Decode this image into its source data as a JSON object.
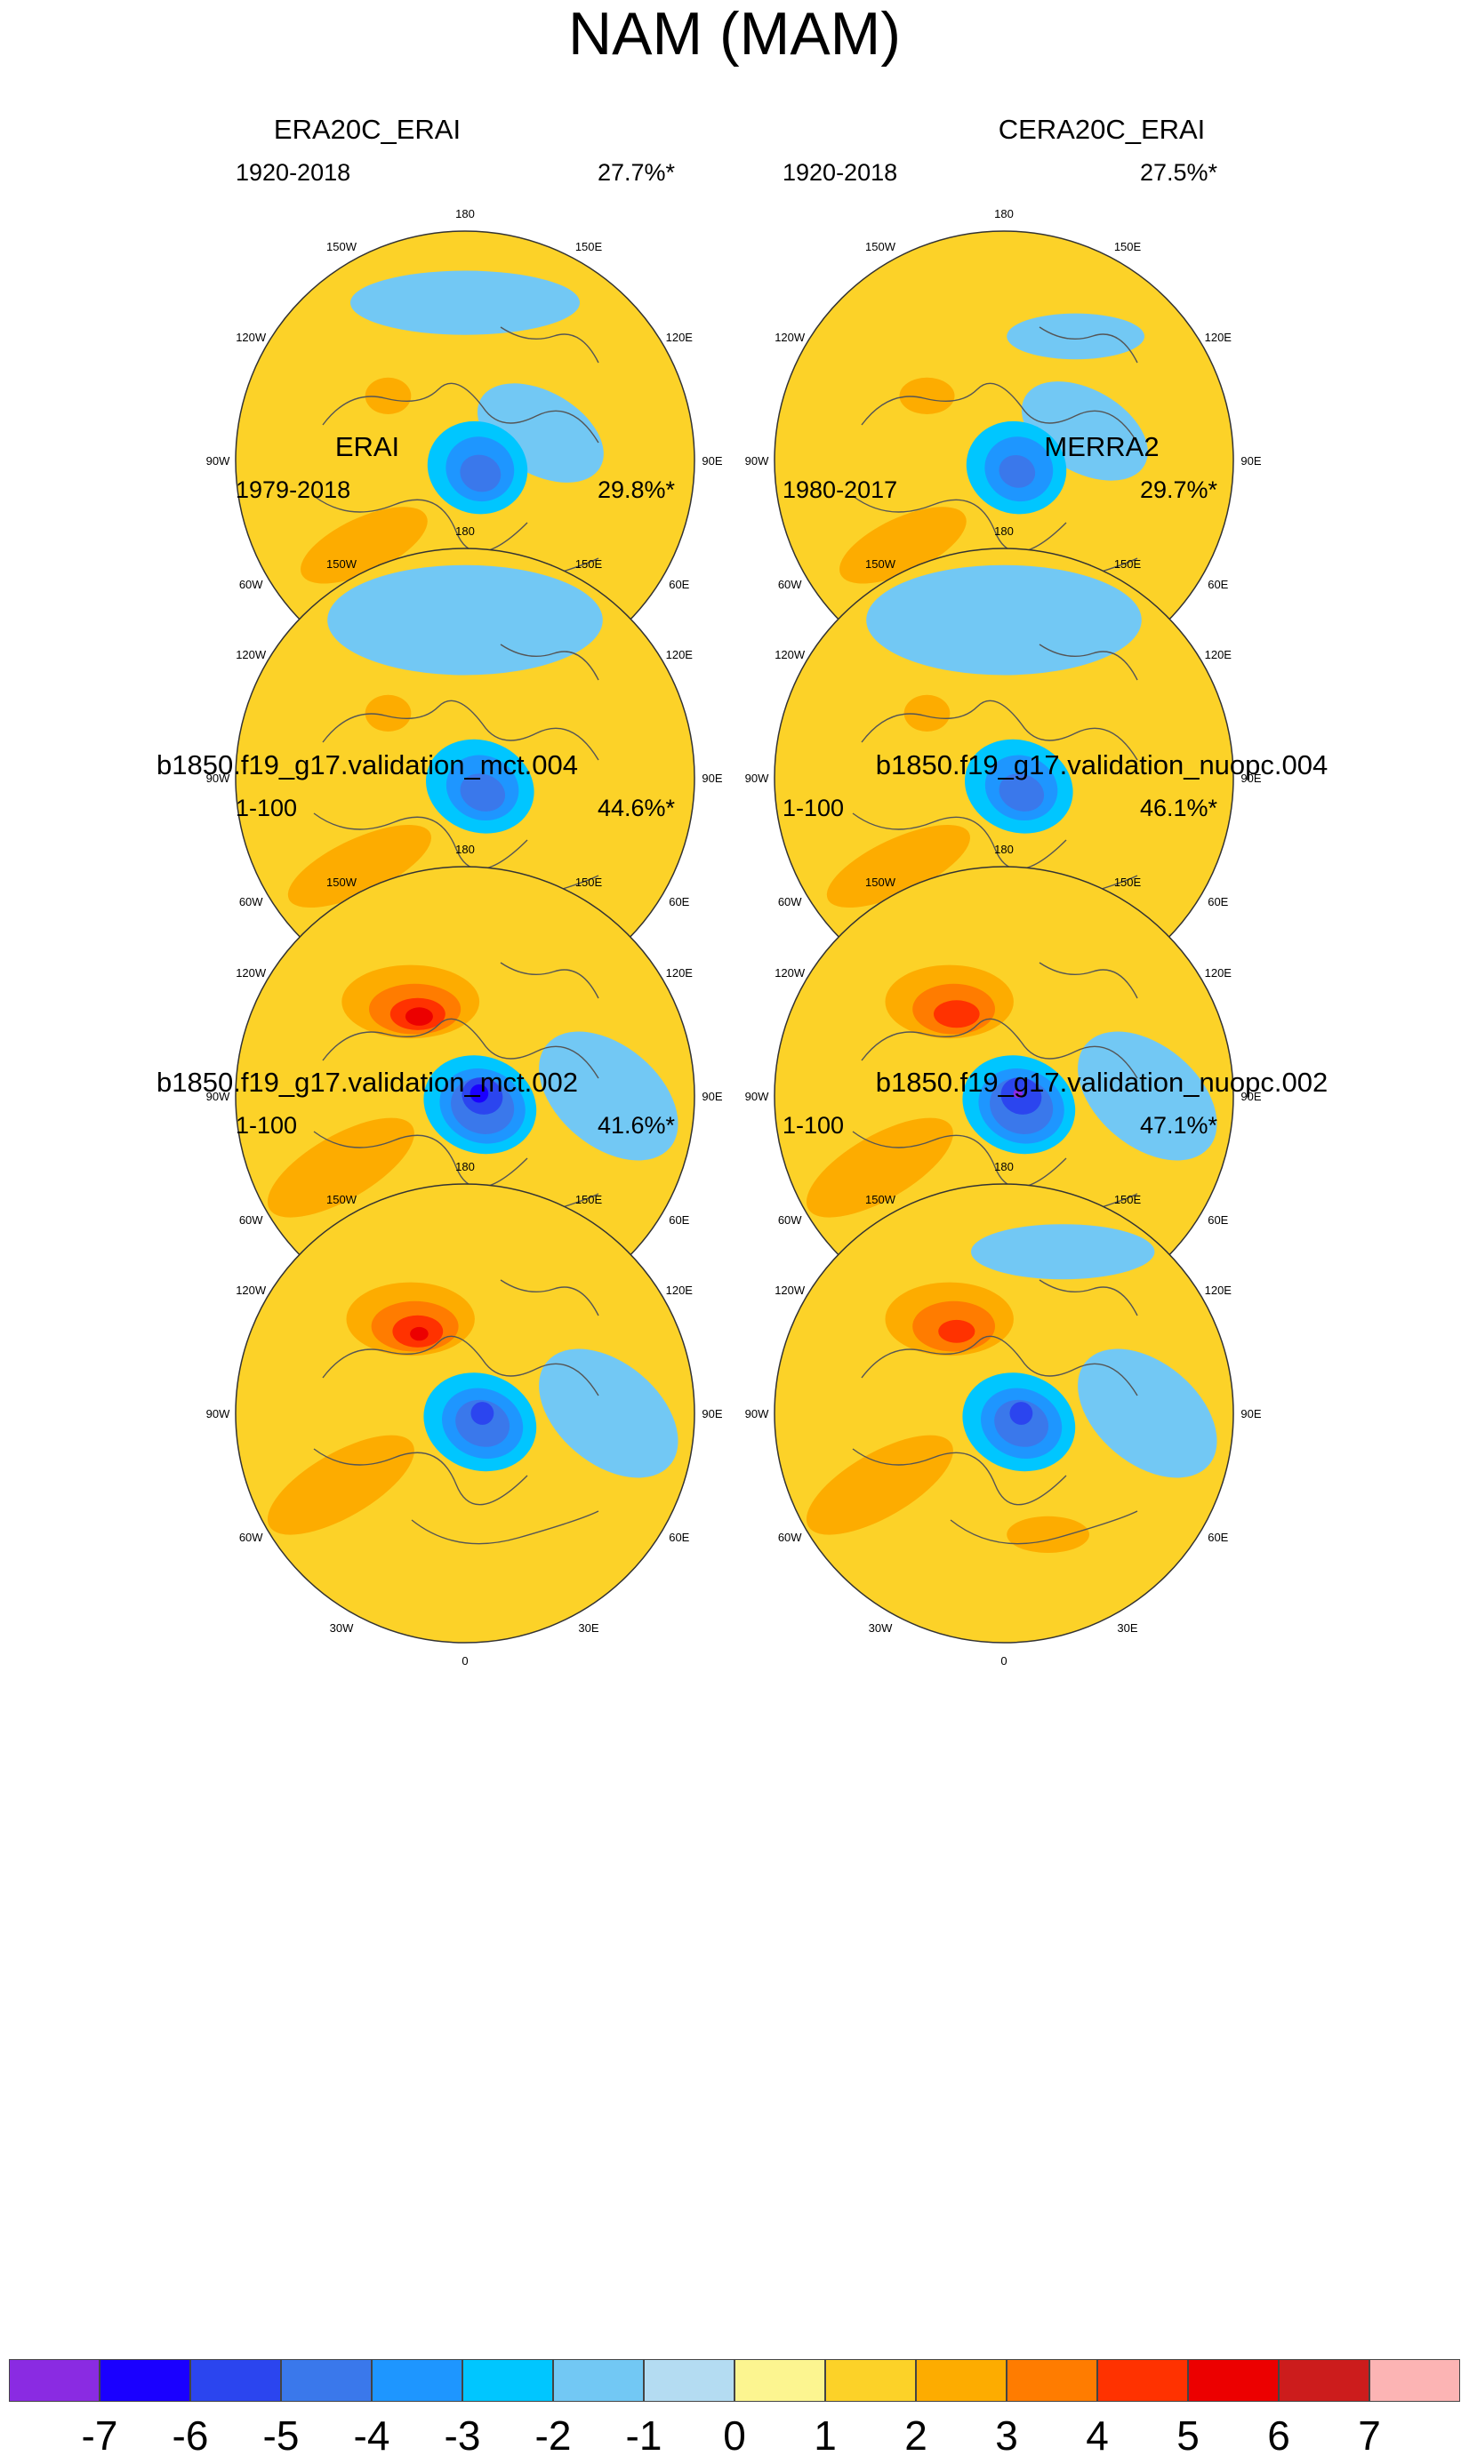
{
  "title": "NAM (MAM)",
  "lon_labels": [
    "180",
    "150E",
    "120E",
    "90E",
    "60E",
    "30E",
    "0",
    "30W",
    "60W",
    "90W",
    "120W",
    "150W"
  ],
  "panels": [
    {
      "title": "ERA20C_ERAI",
      "period": "1920-2018",
      "variance": "27.7%*",
      "features": [
        {
          "v": 2,
          "lon": -50,
          "lat": 44,
          "rx": 0.3,
          "ry": 0.12,
          "rot": -25
        },
        {
          "v": 2,
          "lon": -130,
          "lat": 55,
          "rx": 0.1,
          "ry": 0.08,
          "rot": 0
        },
        {
          "v": -1,
          "lon": 110,
          "lat": 62,
          "rx": 0.3,
          "ry": 0.18,
          "rot": 30
        },
        {
          "v": -1,
          "lon": 180,
          "lat": 35,
          "rx": 0.5,
          "ry": 0.14,
          "rot": 0
        },
        {
          "v": -2,
          "lon": 60,
          "lat": 85,
          "rx": 0.22,
          "ry": 0.2,
          "rot": 20
        },
        {
          "v": -3,
          "lon": 60,
          "lat": 84,
          "rx": 0.15,
          "ry": 0.14,
          "rot": 20
        },
        {
          "v": -4,
          "lon": 50,
          "lat": 83,
          "rx": 0.09,
          "ry": 0.08,
          "rot": 20
        }
      ]
    },
    {
      "title": "CERA20C_ERAI",
      "period": "1920-2018",
      "variance": "27.5%*",
      "features": [
        {
          "v": 2,
          "lon": -50,
          "lat": 44,
          "rx": 0.3,
          "ry": 0.12,
          "rot": -25
        },
        {
          "v": 2,
          "lon": -130,
          "lat": 55,
          "rx": 0.12,
          "ry": 0.08,
          "rot": 0
        },
        {
          "v": -1,
          "lon": 110,
          "lat": 60,
          "rx": 0.3,
          "ry": 0.18,
          "rot": 30
        },
        {
          "v": -1,
          "lon": 150,
          "lat": 40,
          "rx": 0.3,
          "ry": 0.1,
          "rot": 0
        },
        {
          "v": -2,
          "lon": 60,
          "lat": 85,
          "rx": 0.22,
          "ry": 0.2,
          "rot": 20
        },
        {
          "v": -3,
          "lon": 60,
          "lat": 84,
          "rx": 0.15,
          "ry": 0.14,
          "rot": 20
        },
        {
          "v": -4,
          "lon": 50,
          "lat": 84,
          "rx": 0.08,
          "ry": 0.07,
          "rot": 20
        }
      ]
    },
    {
      "title": "ERAI",
      "period": "1979-2018",
      "variance": "29.8%*",
      "features": [
        {
          "v": 2,
          "lon": -50,
          "lat": 42,
          "rx": 0.34,
          "ry": 0.12,
          "rot": -25
        },
        {
          "v": 2,
          "lon": -130,
          "lat": 55,
          "rx": 0.1,
          "ry": 0.08,
          "rot": 0
        },
        {
          "v": -1,
          "lon": 180,
          "lat": 35,
          "rx": 0.6,
          "ry": 0.24,
          "rot": 0
        },
        {
          "v": -2,
          "lon": 60,
          "lat": 84,
          "rx": 0.24,
          "ry": 0.2,
          "rot": 20
        },
        {
          "v": -3,
          "lon": 60,
          "lat": 83,
          "rx": 0.16,
          "ry": 0.14,
          "rot": 20
        },
        {
          "v": -4,
          "lon": 50,
          "lat": 82,
          "rx": 0.1,
          "ry": 0.08,
          "rot": 20
        }
      ]
    },
    {
      "title": "MERRA2",
      "period": "1980-2017",
      "variance": "29.7%*",
      "features": [
        {
          "v": 2,
          "lon": -50,
          "lat": 42,
          "rx": 0.34,
          "ry": 0.12,
          "rot": -25
        },
        {
          "v": 2,
          "lon": -130,
          "lat": 55,
          "rx": 0.1,
          "ry": 0.08,
          "rot": 0
        },
        {
          "v": -1,
          "lon": 180,
          "lat": 35,
          "rx": 0.6,
          "ry": 0.24,
          "rot": 0
        },
        {
          "v": -2,
          "lon": 60,
          "lat": 84,
          "rx": 0.24,
          "ry": 0.2,
          "rot": 20
        },
        {
          "v": -3,
          "lon": 60,
          "lat": 83,
          "rx": 0.16,
          "ry": 0.14,
          "rot": 20
        },
        {
          "v": -4,
          "lon": 50,
          "lat": 82,
          "rx": 0.1,
          "ry": 0.08,
          "rot": 20
        }
      ]
    },
    {
      "title": "b1850.f19_g17.validation_mct.004",
      "period": "1-100",
      "variance": "44.6%*",
      "features": [
        {
          "v": 2,
          "lon": -60,
          "lat": 40,
          "rx": 0.36,
          "ry": 0.14,
          "rot": -30
        },
        {
          "v": 2,
          "lon": 20,
          "lat": 45,
          "rx": 0.16,
          "ry": 0.08,
          "rot": 0
        },
        {
          "v": 2,
          "lon": -150,
          "lat": 52,
          "rx": 0.3,
          "ry": 0.16,
          "rot": 0
        },
        {
          "v": 3,
          "lon": -150,
          "lat": 55,
          "rx": 0.2,
          "ry": 0.11,
          "rot": 0
        },
        {
          "v": 4,
          "lon": -150,
          "lat": 57,
          "rx": 0.12,
          "ry": 0.07,
          "rot": 0
        },
        {
          "v": 5,
          "lon": -150,
          "lat": 58,
          "rx": 0.06,
          "ry": 0.04,
          "rot": 0
        },
        {
          "v": -1,
          "lon": 90,
          "lat": 40,
          "rx": 0.35,
          "ry": 0.22,
          "rot": 40
        },
        {
          "v": -2,
          "lon": 60,
          "lat": 84,
          "rx": 0.25,
          "ry": 0.21,
          "rot": 20
        },
        {
          "v": -3,
          "lon": 60,
          "lat": 83,
          "rx": 0.19,
          "ry": 0.16,
          "rot": 20
        },
        {
          "v": -4,
          "lon": 60,
          "lat": 83,
          "rx": 0.14,
          "ry": 0.12,
          "rot": 20
        },
        {
          "v": -5,
          "lon": 90,
          "lat": 84,
          "rx": 0.09,
          "ry": 0.08,
          "rot": 20
        },
        {
          "v": -6,
          "lon": 100,
          "lat": 85,
          "rx": 0.04,
          "ry": 0.04,
          "rot": 0
        }
      ]
    },
    {
      "title": "b1850.f19_g17.validation_nuopc.004",
      "period": "1-100",
      "variance": "46.1%*",
      "features": [
        {
          "v": 2,
          "lon": -60,
          "lat": 40,
          "rx": 0.36,
          "ry": 0.14,
          "rot": -30
        },
        {
          "v": 2,
          "lon": 20,
          "lat": 45,
          "rx": 0.16,
          "ry": 0.08,
          "rot": 0
        },
        {
          "v": 2,
          "lon": -150,
          "lat": 52,
          "rx": 0.28,
          "ry": 0.16,
          "rot": 0
        },
        {
          "v": 3,
          "lon": -150,
          "lat": 55,
          "rx": 0.18,
          "ry": 0.11,
          "rot": 0
        },
        {
          "v": 4,
          "lon": -150,
          "lat": 57,
          "rx": 0.1,
          "ry": 0.06,
          "rot": 0
        },
        {
          "v": -1,
          "lon": 90,
          "lat": 40,
          "rx": 0.35,
          "ry": 0.22,
          "rot": 40
        },
        {
          "v": -2,
          "lon": 60,
          "lat": 84,
          "rx": 0.25,
          "ry": 0.21,
          "rot": 20
        },
        {
          "v": -3,
          "lon": 60,
          "lat": 83,
          "rx": 0.19,
          "ry": 0.16,
          "rot": 20
        },
        {
          "v": -4,
          "lon": 60,
          "lat": 83,
          "rx": 0.14,
          "ry": 0.12,
          "rot": 20
        },
        {
          "v": -5,
          "lon": 90,
          "lat": 84,
          "rx": 0.09,
          "ry": 0.08,
          "rot": 20
        },
        {
          "v": -7,
          "lon": 100,
          "lat": 85,
          "rx": 0.02,
          "ry": 0.02,
          "rot": 0
        }
      ]
    },
    {
      "title": "b1850.f19_g17.validation_mct.002",
      "period": "1-100",
      "variance": "41.6%*",
      "features": [
        {
          "v": 2,
          "lon": -60,
          "lat": 40,
          "rx": 0.36,
          "ry": 0.14,
          "rot": -30
        },
        {
          "v": 2,
          "lon": -150,
          "lat": 52,
          "rx": 0.28,
          "ry": 0.16,
          "rot": 0
        },
        {
          "v": 3,
          "lon": -150,
          "lat": 55,
          "rx": 0.19,
          "ry": 0.11,
          "rot": 0
        },
        {
          "v": 4,
          "lon": -150,
          "lat": 57,
          "rx": 0.11,
          "ry": 0.07,
          "rot": 0
        },
        {
          "v": 5,
          "lon": -150,
          "lat": 58,
          "rx": 0.04,
          "ry": 0.03,
          "rot": 0
        },
        {
          "v": -1,
          "lon": 90,
          "lat": 40,
          "rx": 0.35,
          "ry": 0.22,
          "rot": 40
        },
        {
          "v": -2,
          "lon": 60,
          "lat": 84,
          "rx": 0.25,
          "ry": 0.21,
          "rot": 20
        },
        {
          "v": -3,
          "lon": 60,
          "lat": 83,
          "rx": 0.18,
          "ry": 0.15,
          "rot": 20
        },
        {
          "v": -4,
          "lon": 60,
          "lat": 83,
          "rx": 0.12,
          "ry": 0.1,
          "rot": 20
        },
        {
          "v": -5,
          "lon": 90,
          "lat": 84,
          "rx": 0.05,
          "ry": 0.05,
          "rot": 20
        }
      ]
    },
    {
      "title": "b1850.f19_g17.validation_nuopc.002",
      "period": "1-100",
      "variance": "47.1%*",
      "features": [
        {
          "v": 2,
          "lon": -60,
          "lat": 40,
          "rx": 0.36,
          "ry": 0.14,
          "rot": -30
        },
        {
          "v": 2,
          "lon": 20,
          "lat": 45,
          "rx": 0.18,
          "ry": 0.08,
          "rot": 0
        },
        {
          "v": 2,
          "lon": -150,
          "lat": 52,
          "rx": 0.28,
          "ry": 0.16,
          "rot": 0
        },
        {
          "v": 3,
          "lon": -150,
          "lat": 55,
          "rx": 0.18,
          "ry": 0.11,
          "rot": 0
        },
        {
          "v": 4,
          "lon": -150,
          "lat": 57,
          "rx": 0.08,
          "ry": 0.05,
          "rot": 0
        },
        {
          "v": -1,
          "lon": 90,
          "lat": 40,
          "rx": 0.35,
          "ry": 0.22,
          "rot": 40
        },
        {
          "v": -1,
          "lon": 160,
          "lat": 30,
          "rx": 0.4,
          "ry": 0.12,
          "rot": 0
        },
        {
          "v": -2,
          "lon": 60,
          "lat": 84,
          "rx": 0.25,
          "ry": 0.21,
          "rot": 20
        },
        {
          "v": -3,
          "lon": 60,
          "lat": 83,
          "rx": 0.18,
          "ry": 0.15,
          "rot": 20
        },
        {
          "v": -4,
          "lon": 60,
          "lat": 83,
          "rx": 0.12,
          "ry": 0.1,
          "rot": 20
        },
        {
          "v": -5,
          "lon": 90,
          "lat": 84,
          "rx": 0.05,
          "ry": 0.05,
          "rot": 20
        }
      ]
    }
  ],
  "colorbar": {
    "labels": [
      "-7",
      "-6",
      "-5",
      "-4",
      "-3",
      "-2",
      "-1",
      "0",
      "1",
      "2",
      "3",
      "4",
      "5",
      "6",
      "7"
    ],
    "colors": [
      "#8a2be2",
      "#1a00ff",
      "#2b45ef",
      "#3a78eb",
      "#1e96ff",
      "#00c6ff",
      "#72c8f4",
      "#b4dcf2",
      "#fcf590",
      "#fcd228",
      "#fdac00",
      "#ff7c00",
      "#ff3200",
      "#ec0000",
      "#cc1c1c",
      "#fcb4b4"
    ]
  }
}
